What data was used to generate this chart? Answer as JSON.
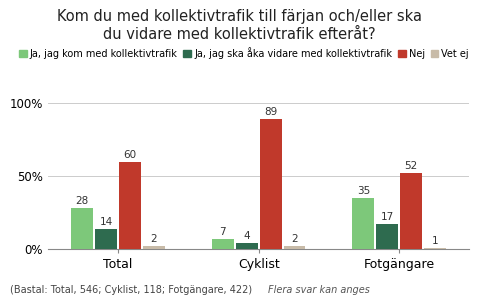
{
  "title": "Kom du med kollektivtrafik till färjan och/eller ska\ndu vidare med kollektivtrafik efteråt?",
  "categories": [
    "Total",
    "Cyklist",
    "Fotgängare"
  ],
  "series": [
    {
      "label": "Ja, jag kom med kollektivtrafik",
      "color": "#7DC87A",
      "values": [
        28,
        7,
        35
      ]
    },
    {
      "label": "Ja, jag ska åka vidare med kollektivtrafik",
      "color": "#2E6B4F",
      "values": [
        14,
        4,
        17
      ]
    },
    {
      "label": "Nej",
      "color": "#C0392B",
      "values": [
        60,
        89,
        52
      ]
    },
    {
      "label": "Vet ej",
      "color": "#C8BBA8",
      "values": [
        2,
        2,
        1
      ]
    }
  ],
  "ylim": [
    0,
    100
  ],
  "yticks": [
    0,
    50,
    100
  ],
  "ytick_labels": [
    "0%",
    "50%",
    "100%"
  ],
  "footnote_left": "(Bastal: Total, 546; Cyklist, 118; Fotgängare, 422)",
  "footnote_right": "Flera svar kan anges",
  "background_color": "#FFFFFF",
  "title_fontsize": 10.5,
  "legend_fontsize": 7,
  "bar_width": 0.17,
  "label_fontsize": 7.5
}
